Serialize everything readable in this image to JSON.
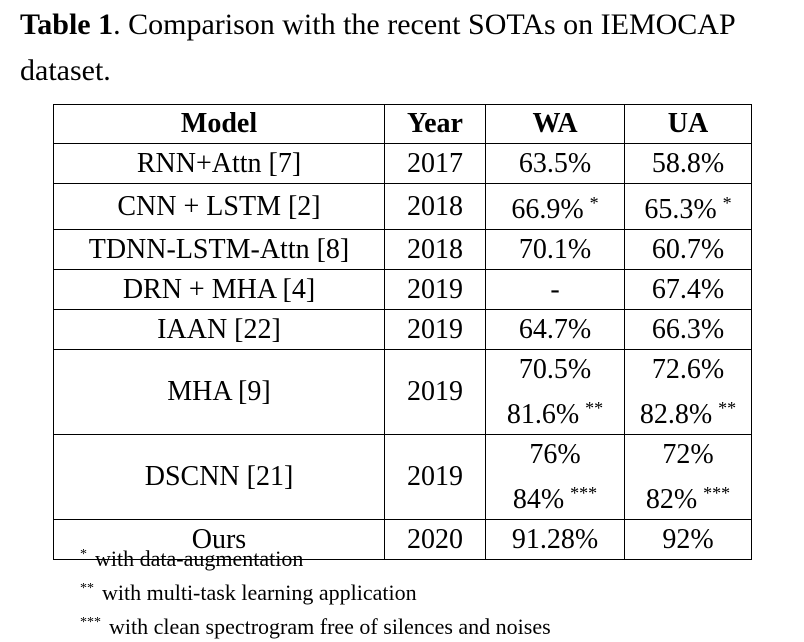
{
  "caption": {
    "label": "Table 1",
    "text": ". Comparison with the recent SOTAs on IEMOCAP dataset."
  },
  "table": {
    "headers": [
      "Model",
      "Year",
      "WA",
      "UA"
    ],
    "rows": [
      {
        "model": "RNN+Attn [7]",
        "year": "2017",
        "wa": [
          "63.5%"
        ],
        "wa_sup": [
          ""
        ],
        "ua": [
          "58.8%"
        ],
        "ua_sup": [
          ""
        ]
      },
      {
        "model": "CNN + LSTM [2]",
        "year": "2018",
        "wa": [
          "66.9%"
        ],
        "wa_sup": [
          "*"
        ],
        "ua": [
          "65.3%"
        ],
        "ua_sup": [
          "*"
        ]
      },
      {
        "model": "TDNN-LSTM-Attn [8]",
        "year": "2018",
        "wa": [
          "70.1%"
        ],
        "wa_sup": [
          ""
        ],
        "ua": [
          "60.7%"
        ],
        "ua_sup": [
          ""
        ]
      },
      {
        "model": "DRN + MHA [4]",
        "year": "2019",
        "wa": [
          "-"
        ],
        "wa_sup": [
          ""
        ],
        "ua": [
          "67.4%"
        ],
        "ua_sup": [
          ""
        ]
      },
      {
        "model": "IAAN [22]",
        "year": "2019",
        "wa": [
          "64.7%"
        ],
        "wa_sup": [
          ""
        ],
        "ua": [
          "66.3%"
        ],
        "ua_sup": [
          ""
        ]
      },
      {
        "model": "MHA [9]",
        "year": "2019",
        "wa": [
          "70.5%",
          "81.6%"
        ],
        "wa_sup": [
          "",
          "**"
        ],
        "ua": [
          "72.6%",
          "82.8%"
        ],
        "ua_sup": [
          "",
          "**"
        ]
      },
      {
        "model": "DSCNN [21]",
        "year": "2019",
        "wa": [
          "76%",
          "84%"
        ],
        "wa_sup": [
          "",
          "***"
        ],
        "ua": [
          "72%",
          "82%"
        ],
        "ua_sup": [
          "",
          "***"
        ]
      },
      {
        "model": "Ours",
        "year": "2020",
        "wa": [
          "91.28%"
        ],
        "wa_sup": [
          ""
        ],
        "ua": [
          "92%"
        ],
        "ua_sup": [
          ""
        ],
        "bold": true
      }
    ]
  },
  "notes": [
    {
      "mark": "*",
      "text": "with data-augmentation"
    },
    {
      "mark": "**",
      "text": "with multi-task learning application"
    },
    {
      "mark": "***",
      "text": "with clean spectrogram free of silences and noises"
    }
  ]
}
